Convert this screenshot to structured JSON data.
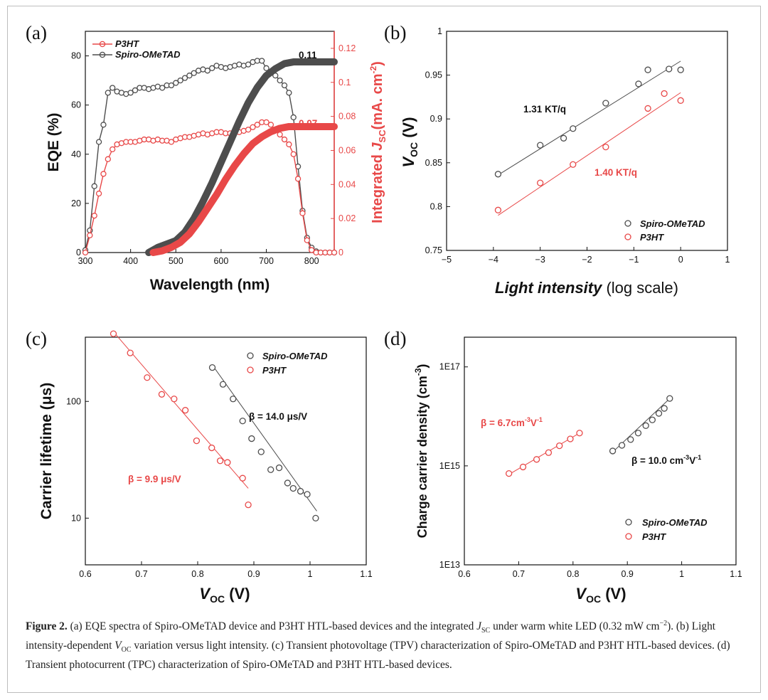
{
  "colors": {
    "black": "#4d4d4d",
    "red": "#e84848",
    "dark": "#111111"
  },
  "caption": {
    "label": "Figure 2.",
    "part1": " (a) EQE spectra of Spiro-OMeTAD device and P3HT HTL-based devices and the integrated ",
    "jsc": "J",
    "jsc_sub": "SC",
    "part2": " under warm white LED (0.32 mW cm",
    "part2_sup": "−2",
    "part3": "). (b) Light intensity-dependent ",
    "voc": "V",
    "voc_sub": "OC",
    "part4": " variation versus light intensity. (c) Transient photovoltage (TPV) characterization of Spiro-OMeTAD and P3HT HTL-based devices. (d) Transient photocurrent (TPC) characterization of Spiro-OMeTAD and P3HT HTL-based devices."
  },
  "chart_data": [
    {
      "id": "a",
      "panel_label": "(a)",
      "type": "line",
      "xlabel": "Wavelength (nm)",
      "ylabel": "EQE (%)",
      "y2label_pre": "Integrated ",
      "y2label_j": "J",
      "y2label_sub": "SC",
      "y2label_post": "(mA. cm",
      "y2label_sup": "-2",
      "y2label_end": ")",
      "xlim": [
        300,
        850
      ],
      "ylim": [
        0,
        90
      ],
      "y2lim": [
        0,
        0.13
      ],
      "xticks": [
        "300",
        "400",
        "500",
        "600",
        "700",
        "800"
      ],
      "yticks": [
        "0",
        "20",
        "40",
        "60",
        "80"
      ],
      "y2ticks": [
        "0",
        "0.02",
        "0.04",
        "0.06",
        "0.08",
        "0.1",
        "0.12"
      ],
      "legend": [
        "P3HT",
        "Spiro-OMeTAD"
      ],
      "annotations": [
        "0.11",
        "0.07"
      ],
      "series": [
        {
          "name": "Spiro-OMeTAD EQE",
          "color": "black",
          "x": [
            300,
            310,
            320,
            330,
            340,
            350,
            360,
            370,
            380,
            390,
            400,
            410,
            420,
            430,
            440,
            450,
            460,
            470,
            480,
            490,
            500,
            510,
            520,
            530,
            540,
            550,
            560,
            570,
            580,
            590,
            600,
            610,
            620,
            630,
            640,
            650,
            660,
            670,
            680,
            690,
            700,
            710,
            720,
            730,
            740,
            750,
            760,
            770,
            780,
            790,
            800,
            810,
            820,
            830,
            840,
            850
          ],
          "y": [
            1,
            9,
            27,
            45,
            52,
            65,
            67,
            65.5,
            65,
            64.5,
            65,
            66,
            67,
            67,
            66.5,
            67,
            67.5,
            67,
            68,
            68,
            69,
            70,
            71,
            72,
            73,
            74,
            74.5,
            74,
            75,
            76,
            75.5,
            75,
            75.5,
            76,
            76.5,
            76,
            76.5,
            77.5,
            78,
            78,
            75,
            73,
            72,
            70,
            68,
            65,
            55,
            35,
            17,
            6,
            2,
            0.5,
            0,
            0,
            0,
            0
          ]
        },
        {
          "name": "P3HT EQE",
          "color": "red",
          "x": [
            300,
            310,
            320,
            330,
            340,
            350,
            360,
            370,
            380,
            390,
            400,
            410,
            420,
            430,
            440,
            450,
            460,
            470,
            480,
            490,
            500,
            510,
            520,
            530,
            540,
            550,
            560,
            570,
            580,
            590,
            600,
            610,
            620,
            630,
            640,
            650,
            660,
            670,
            680,
            690,
            700,
            710,
            720,
            730,
            740,
            750,
            760,
            770,
            780,
            790,
            800,
            810,
            820,
            830,
            840,
            850
          ],
          "y": [
            0,
            7,
            15,
            24,
            32,
            38,
            42,
            44,
            44.5,
            45,
            45,
            45,
            45.5,
            46,
            46,
            45.5,
            46,
            45.5,
            45.5,
            45,
            46,
            46.5,
            47,
            47,
            47.5,
            48,
            48.5,
            48,
            48.5,
            49,
            49,
            48.5,
            48.5,
            49,
            49,
            49.5,
            50,
            51,
            52,
            53,
            53,
            52,
            50,
            48,
            46,
            44,
            40,
            30,
            16,
            5,
            1,
            0,
            0,
            0,
            0,
            0
          ]
        },
        {
          "name": "Spiro-OMeTAD integrated Jsc",
          "color": "black",
          "axis": "y2",
          "x": [
            440,
            460,
            480,
            500,
            520,
            540,
            560,
            580,
            600,
            620,
            640,
            660,
            680,
            700,
            720,
            740,
            760,
            780,
            800,
            820,
            840,
            850
          ],
          "y": [
            0,
            0.003,
            0.005,
            0.007,
            0.012,
            0.02,
            0.03,
            0.041,
            0.053,
            0.065,
            0.077,
            0.088,
            0.097,
            0.104,
            0.108,
            0.111,
            0.112,
            0.112,
            0.112,
            0.112,
            0.112,
            0.112
          ]
        },
        {
          "name": "P3HT integrated Jsc",
          "color": "red",
          "axis": "y2",
          "x": [
            450,
            470,
            490,
            510,
            530,
            550,
            570,
            590,
            610,
            630,
            650,
            670,
            690,
            710,
            730,
            750,
            770,
            790,
            810,
            830,
            850
          ],
          "y": [
            0,
            0.001,
            0.003,
            0.006,
            0.011,
            0.018,
            0.026,
            0.034,
            0.043,
            0.051,
            0.058,
            0.064,
            0.068,
            0.071,
            0.073,
            0.074,
            0.074,
            0.074,
            0.074,
            0.074,
            0.074
          ]
        }
      ]
    },
    {
      "id": "b",
      "panel_label": "(b)",
      "type": "scatter",
      "xlabel_italic": "Light intensity",
      "xlabel_rest": " (log scale)",
      "ylabel_v": "V",
      "ylabel_sub": "OC",
      "ylabel_rest": " (V)",
      "xlim": [
        -5,
        1
      ],
      "ylim": [
        0.75,
        1.0
      ],
      "xticks": [
        "−5",
        "−4",
        "−3",
        "−2",
        "−1",
        "0",
        "1"
      ],
      "yticks": [
        "0.75",
        "0.8",
        "0.85",
        "0.9",
        "0.95",
        "1"
      ],
      "legend": [
        "Spiro-OMeTAD",
        "P3HT"
      ],
      "annotations": [
        "1.31 KT/q",
        "1.40 KT/q"
      ],
      "series": [
        {
          "name": "Spiro-OMeTAD",
          "color": "black",
          "x": [
            -3.9,
            -3.0,
            -2.5,
            -2.3,
            -1.6,
            -0.9,
            -0.7,
            -0.25,
            0
          ],
          "y": [
            0.837,
            0.87,
            0.878,
            0.889,
            0.918,
            0.94,
            0.956,
            0.957,
            0.956
          ],
          "fit": [
            [
              -3.9,
              0.836
            ],
            [
              0,
              0.966
            ]
          ]
        },
        {
          "name": "P3HT",
          "color": "red",
          "x": [
            -3.9,
            -3.0,
            -2.3,
            -1.6,
            -0.7,
            -0.35,
            0
          ],
          "y": [
            0.796,
            0.827,
            0.848,
            0.868,
            0.912,
            0.929,
            0.921
          ],
          "fit": [
            [
              -3.9,
              0.79
            ],
            [
              0,
              0.93
            ]
          ]
        }
      ]
    },
    {
      "id": "c",
      "panel_label": "(c)",
      "type": "scatter",
      "xlabel_v": "V",
      "xlabel_sub": "OC",
      "xlabel_rest": " (V)",
      "ylabel": "Carrier lifetime (μs)",
      "xlim": [
        0.6,
        1.1
      ],
      "ylim_log10": [
        0.6,
        2.55
      ],
      "xticks": [
        "0.6",
        "0.7",
        "0.8",
        "0.9",
        "1",
        "1.1"
      ],
      "yticks": [
        "10",
        "100"
      ],
      "legend": [
        "Spiro-OMeTAD",
        "P3HT"
      ],
      "annotations": [
        "β = 14.0 μs/V",
        "β = 9.9 μs/V"
      ],
      "series": [
        {
          "name": "Spiro-OMeTAD",
          "color": "black",
          "x": [
            0.826,
            0.845,
            0.863,
            0.88,
            0.896,
            0.913,
            0.93,
            0.945,
            0.96,
            0.97,
            0.983,
            0.995,
            1.01
          ],
          "y": [
            195,
            140,
            105,
            68,
            48,
            37,
            26,
            27,
            20,
            18,
            17,
            16,
            10
          ],
          "fit": [
            [
              0.826,
              205
            ],
            [
              1.012,
              11.5
            ]
          ]
        },
        {
          "name": "P3HT",
          "color": "red",
          "x": [
            0.65,
            0.68,
            0.71,
            0.736,
            0.758,
            0.778,
            0.798,
            0.825,
            0.84,
            0.853,
            0.88,
            0.89
          ],
          "y": [
            380,
            260,
            160,
            115,
            105,
            84,
            46,
            40,
            31,
            30,
            22,
            13
          ],
          "fit": [
            [
              0.65,
              395
            ],
            [
              0.89,
              18
            ]
          ]
        }
      ]
    },
    {
      "id": "d",
      "panel_label": "(d)",
      "type": "scatter",
      "xlabel_v": "V",
      "xlabel_sub": "OC",
      "xlabel_rest": " (V)",
      "ylabel_pre": "Charge carrier density (cm",
      "ylabel_sup": "-3",
      "ylabel_post": ")",
      "xlim": [
        0.6,
        1.1
      ],
      "ylim_log10": [
        13,
        17.6
      ],
      "xticks": [
        "0.6",
        "0.7",
        "0.8",
        "0.9",
        "1",
        "1.1"
      ],
      "yticks": [
        "1E13",
        "1E15",
        "1E17"
      ],
      "legend": [
        "Spiro-OMeTAD",
        "P3HT"
      ],
      "annotations_red": {
        "pre": "β = 6.7cm",
        "sup1": "-3",
        "mid": "V",
        "sup2": "-1"
      },
      "annotations_black": {
        "pre": "β = 10.0 cm",
        "sup1": "-3",
        "mid": "V",
        "sup2": "-1"
      },
      "series": [
        {
          "name": "Spiro-OMeTAD",
          "color": "black",
          "x": [
            0.873,
            0.89,
            0.906,
            0.92,
            0.934,
            0.946,
            0.958,
            0.968,
            0.978
          ],
          "y": [
            2000000000000000.0,
            2600000000000000.0,
            3400000000000000.0,
            4600000000000000.0,
            6500000000000000.0,
            8500000000000000.0,
            1.15e+16,
            1.45e+16,
            2.3e+16
          ],
          "fit": [
            [
              0.873,
              1900000000000000.0
            ],
            [
              0.98,
              2.4e+16
            ]
          ]
        },
        {
          "name": "P3HT",
          "color": "red",
          "x": [
            0.682,
            0.708,
            0.733,
            0.755,
            0.775,
            0.795,
            0.812
          ],
          "y": [
            700000000000000.0,
            950000000000000.0,
            1350000000000000.0,
            1850000000000000.0,
            2550000000000000.0,
            3500000000000000.0,
            4600000000000000.0
          ],
          "fit": [
            [
              0.682,
              670000000000000.0
            ],
            [
              0.815,
              4800000000000000.0
            ]
          ]
        }
      ]
    }
  ]
}
